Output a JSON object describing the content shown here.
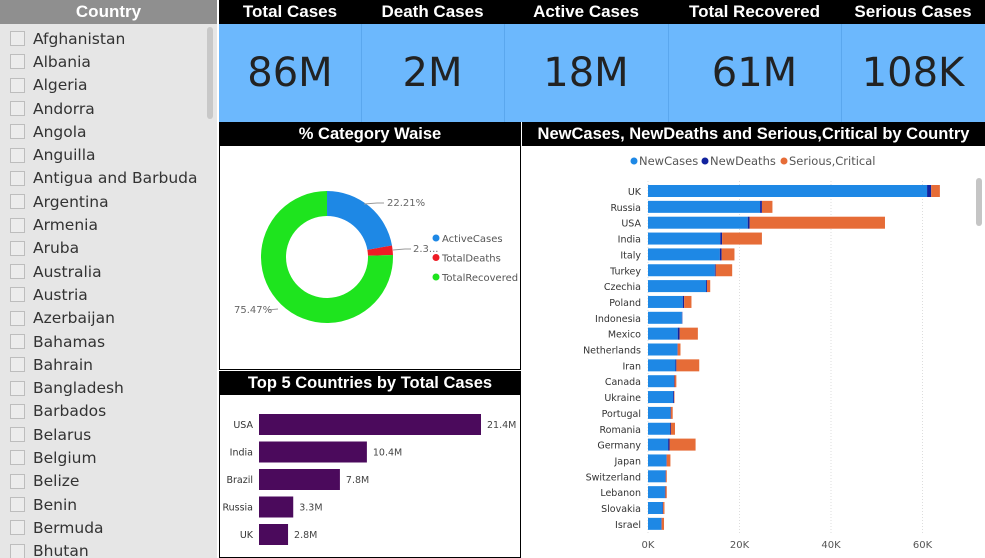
{
  "slicer": {
    "title": "Country",
    "items": [
      "Afghanistan",
      "Albania",
      "Algeria",
      "Andorra",
      "Angola",
      "Anguilla",
      "Antigua and Barbuda",
      "Argentina",
      "Armenia",
      "Aruba",
      "Australia",
      "Austria",
      "Azerbaijan",
      "Bahamas",
      "Bahrain",
      "Bangladesh",
      "Barbados",
      "Belarus",
      "Belgium",
      "Belize",
      "Benin",
      "Bermuda",
      "Bhutan"
    ]
  },
  "kpis": [
    {
      "title": "Total Cases",
      "value": "86M"
    },
    {
      "title": "Death Cases",
      "value": "2M"
    },
    {
      "title": "Active Cases",
      "value": "18M"
    },
    {
      "title": "Total Recovered",
      "value": "61M"
    },
    {
      "title": "Serious Cases",
      "value": "108K"
    }
  ],
  "colors": {
    "kpi_bg": "#6cb8fd",
    "active": "#1e88e5",
    "deaths": "#ee1c25",
    "recovered": "#1ee41e",
    "top5": "#4b0a5c",
    "newcases": "#1e88e5",
    "newdeaths": "#12239e",
    "serious": "#e66c37"
  },
  "donut": {
    "title": "% Category Waise",
    "labels": {
      "active": "22.21%",
      "deaths": "2.3...",
      "recovered": "75.47%"
    },
    "legend": [
      "ActiveCases",
      "TotalDeaths",
      "TotalRecovered"
    ]
  },
  "top5": {
    "title": "Top 5 Countries by Total Cases"
  },
  "stacked": {
    "title": "NewCases, NewDeaths and Serious,Critical by Country",
    "legend": [
      "NewCases",
      "NewDeaths",
      "Serious,Critical"
    ],
    "ticks": [
      "0K",
      "20K",
      "40K",
      "60K"
    ]
  },
  "chart_data": [
    {
      "type": "pie",
      "title": "% Category Waise",
      "categories": [
        "ActiveCases",
        "TotalDeaths",
        "TotalRecovered"
      ],
      "values": [
        22.21,
        2.32,
        75.47
      ],
      "legend": "right"
    },
    {
      "type": "bar",
      "title": "Top 5 Countries by Total Cases",
      "categories": [
        "USA",
        "India",
        "Brazil",
        "Russia",
        "UK"
      ],
      "values": [
        21.4,
        10.4,
        7.8,
        3.3,
        2.8
      ],
      "data_labels": [
        "21.4M",
        "10.4M",
        "7.8M",
        "3.3M",
        "2.8M"
      ]
    },
    {
      "type": "bar",
      "title": "NewCases, NewDeaths and Serious,Critical by Country",
      "categories": [
        "UK",
        "Russia",
        "USA",
        "India",
        "Italy",
        "Turkey",
        "Czechia",
        "Poland",
        "Indonesia",
        "Mexico",
        "Netherlands",
        "Iran",
        "Canada",
        "Ukraine",
        "Portugal",
        "Romania",
        "Germany",
        "Japan",
        "Switzerland",
        "Lebanon",
        "Slovakia",
        "Israel"
      ],
      "series": [
        {
          "name": "NewCases",
          "values": [
            61000,
            24500,
            21800,
            15800,
            15700,
            14600,
            12700,
            7600,
            7400,
            6500,
            6400,
            6000,
            5700,
            5500,
            4900,
            4800,
            4400,
            4000,
            3800,
            3700,
            3200,
            2900
          ]
        },
        {
          "name": "NewDeaths",
          "values": [
            900,
            400,
            400,
            400,
            400,
            200,
            200,
            300,
            100,
            400,
            100,
            200,
            100,
            200,
            100,
            200,
            300,
            100,
            100,
            100,
            100,
            100
          ]
        },
        {
          "name": "Serious,Critical",
          "values": [
            1900,
            2300,
            29600,
            8700,
            2800,
            3600,
            700,
            1600,
            0,
            4000,
            600,
            5000,
            400,
            100,
            400,
            900,
            5700,
            800,
            200,
            300,
            300,
            500
          ]
        }
      ],
      "xlim": [
        0,
        67000
      ],
      "legend": "top"
    }
  ]
}
